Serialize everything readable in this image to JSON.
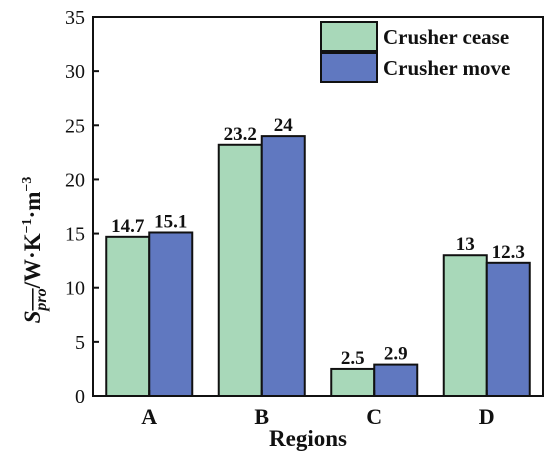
{
  "chart_data": {
    "type": "bar",
    "categories": [
      "A",
      "B",
      "C",
      "D"
    ],
    "series": [
      {
        "name": "Crusher cease",
        "values": [
          14.7,
          23.2,
          2.5,
          13
        ],
        "labels": [
          "14.7",
          "23.2",
          "2.5",
          "13"
        ],
        "color": "#a8d8b9"
      },
      {
        "name": "Crusher move",
        "values": [
          15.1,
          24,
          2.9,
          12.3
        ],
        "labels": [
          "15.1",
          "24",
          "2.9",
          "12.3"
        ],
        "color": "#6078c0"
      }
    ],
    "xlabel": "Regions",
    "ylabel": {
      "symbol": "S",
      "subscript": "pro",
      "unit_prefix": "/W·K",
      "unit_exp1": "−1",
      "unit_mid": "·m",
      "unit_exp2": "−3"
    },
    "ylim": [
      0,
      35
    ],
    "yticks": [
      "0",
      "5",
      "10",
      "15",
      "20",
      "25",
      "30",
      "35"
    ],
    "grid": false,
    "legend_position": "top-right"
  }
}
